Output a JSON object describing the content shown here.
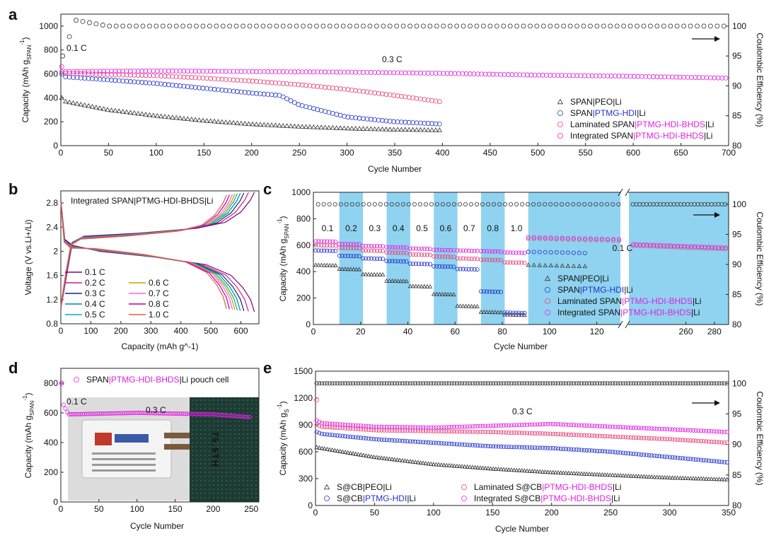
{
  "figure": {
    "panel_letters": [
      "a",
      "b",
      "c",
      "d",
      "e"
    ],
    "colors": {
      "gray": "#333333",
      "blue": "#2233cc",
      "pink": "#e8407a",
      "magenta": "#e020e0",
      "band": "#8fd3f0",
      "black": "#111111"
    }
  },
  "chart_data": [
    {
      "id": "a",
      "type": "scatter",
      "title": "",
      "xlabel": "Cycle Number",
      "ylabel_left": "Capacity (mAh g_SPAN^-1)",
      "ylabel_right": "Coulombic Efficiency (%)",
      "xlim": [
        0,
        700
      ],
      "ylim": [
        0,
        1100
      ],
      "ylim_right": [
        80,
        102
      ],
      "xticks": [
        0,
        50,
        100,
        150,
        200,
        250,
        300,
        350,
        400,
        450,
        500,
        550,
        600,
        650,
        700
      ],
      "yticks": [
        0,
        200,
        400,
        600,
        800,
        1000
      ],
      "yticks_right": [
        80,
        85,
        90,
        95,
        100
      ],
      "annotations": [
        "0.1 C",
        "0.3 C"
      ],
      "legend": [
        "SPAN|PEO|Li",
        "SPAN|PTMG-HDI|Li",
        "Laminated SPAN|PTMG-HDI-BHDS|Li",
        "Integrated SPAN|PTMG-HDI-BHDS|Li"
      ],
      "series": [
        {
          "name": "SPAN|PEO|Li",
          "marker": "triangle",
          "color": "#333333",
          "x": [
            1,
            5,
            50,
            100,
            150,
            200,
            250,
            300,
            350,
            400
          ],
          "y": [
            400,
            370,
            300,
            250,
            210,
            180,
            160,
            145,
            135,
            130
          ]
        },
        {
          "name": "SPAN|PTMG-HDI|Li",
          "marker": "circle",
          "color": "#2233cc",
          "x": [
            1,
            5,
            50,
            100,
            150,
            200,
            230,
            250,
            300,
            350,
            400
          ],
          "y": [
            600,
            575,
            550,
            520,
            480,
            440,
            420,
            340,
            240,
            200,
            180
          ]
        },
        {
          "name": "Laminated SPAN|PTMG-HDI-BHDS|Li",
          "marker": "circle",
          "color": "#e8407a",
          "x": [
            1,
            5,
            50,
            100,
            150,
            200,
            250,
            300,
            350,
            400
          ],
          "y": [
            620,
            605,
            595,
            585,
            565,
            540,
            510,
            470,
            420,
            365
          ]
        },
        {
          "name": "Integrated SPAN|PTMG-HDI-BHDS|Li",
          "marker": "circle",
          "color": "#e020e0",
          "x": [
            1,
            5,
            100,
            200,
            300,
            400,
            500,
            600,
            700
          ],
          "y": [
            660,
            620,
            625,
            620,
            615,
            605,
            590,
            580,
            565
          ]
        },
        {
          "name": "Coulombic Efficiency",
          "marker": "circle",
          "color": "#333333",
          "axis": "right",
          "x": [
            2,
            15,
            50,
            200,
            400,
            600,
            700
          ],
          "y": [
            95,
            101,
            100,
            100,
            100,
            100,
            100
          ]
        }
      ]
    },
    {
      "id": "b",
      "type": "line",
      "title": "Integrated SPAN|PTMG-HDI-BHDS|Li",
      "xlabel": "Capacity (mAh g^-1)",
      "ylabel": "Voltage (V vs.Li+/Li)",
      "xlim": [
        0,
        660
      ],
      "ylim": [
        0.8,
        3.0
      ],
      "xticks": [
        0,
        100,
        200,
        300,
        400,
        500,
        600
      ],
      "yticks": [
        0.8,
        1.2,
        1.6,
        2.0,
        2.4,
        2.8
      ],
      "series": [
        {
          "name": "0.1 C",
          "color": "#800080",
          "capacity": 645
        },
        {
          "name": "0.2 C",
          "color": "#cc2277",
          "capacity": 625
        },
        {
          "name": "0.3 C",
          "color": "#1a237e",
          "capacity": 610
        },
        {
          "name": "0.4 C",
          "color": "#008b8b",
          "capacity": 598
        },
        {
          "name": "0.5 C",
          "color": "#00b0b0",
          "capacity": 588
        },
        {
          "name": "0.6 C",
          "color": "#c8a000",
          "capacity": 580
        },
        {
          "name": "0.7 C",
          "color": "#ff66cc",
          "capacity": 572
        },
        {
          "name": "0.8 C",
          "color": "#b000b0",
          "capacity": 562
        },
        {
          "name": "1.0 C",
          "color": "#e06040",
          "capacity": 552
        }
      ]
    },
    {
      "id": "c",
      "type": "scatter",
      "xlabel": "Cycle Number",
      "ylabel_left": "Capacity (mAh g_SPAN^-1)",
      "ylabel_right": "Coulombic Efficiency (%)",
      "ylim": [
        0,
        1000
      ],
      "ylim_right": [
        80,
        102
      ],
      "xticks": [
        0,
        20,
        40,
        60,
        80,
        100,
        120,
        260,
        280
      ],
      "yticks": [
        0,
        200,
        400,
        600,
        800,
        1000
      ],
      "yticks_right": [
        80,
        85,
        90,
        95,
        100
      ],
      "rate_labels": [
        "0.1",
        "0.2",
        "0.3",
        "0.4",
        "0.5",
        "0.6",
        "0.7",
        "0.8",
        "1.0",
        "0.1 C"
      ],
      "legend": [
        "SPAN|PEO|Li",
        "SPAN|PTMG-HDI|Li",
        "Laminated SPAN|PTMG-HDI-BHDS|Li",
        "Integrated SPAN|PTMG-HDI-BHDS|Li"
      ],
      "series": [
        {
          "name": "SPAN|PEO|Li",
          "color": "#333333",
          "steps": [
            450,
            420,
            380,
            330,
            290,
            230,
            140,
            95,
            75,
            450
          ]
        },
        {
          "name": "SPAN|PTMG-HDI|Li",
          "color": "#2233cc",
          "steps": [
            560,
            520,
            500,
            480,
            460,
            440,
            420,
            250,
            90,
            550
          ]
        },
        {
          "name": "Laminated SPAN|PTMG-HDI-BHDS|Li",
          "color": "#e8407a",
          "steps": [
            600,
            580,
            560,
            545,
            530,
            515,
            500,
            490,
            470,
            650
          ]
        },
        {
          "name": "Integrated SPAN|PTMG-HDI-BHDS|Li",
          "color": "#e020e0",
          "steps": [
            630,
            610,
            595,
            585,
            575,
            565,
            560,
            555,
            545,
            660
          ]
        }
      ]
    },
    {
      "id": "d",
      "type": "scatter",
      "xlabel": "Cycle Number",
      "ylabel": "Capacity (mAh g_SPAN^-1)",
      "xlim": [
        0,
        260
      ],
      "ylim": [
        0,
        900
      ],
      "xticks": [
        0,
        50,
        100,
        150,
        200,
        250
      ],
      "yticks": [
        0,
        200,
        400,
        600,
        800
      ],
      "annotations": [
        "0.1 C",
        "0.3 C"
      ],
      "legend": [
        "SPAN|PTMG-HDI-BHDS|Li pouch cell"
      ],
      "series": [
        {
          "name": "SPAN|PTMG-HDI-BHDS|Li pouch cell",
          "color": "#e020e0",
          "x": [
            1,
            3,
            10,
            100,
            200,
            250
          ],
          "y": [
            800,
            660,
            590,
            600,
            590,
            570
          ]
        }
      ]
    },
    {
      "id": "e",
      "type": "scatter",
      "xlabel": "Cycle Number",
      "ylabel_left": "Capacity (mAh g_S^-1)",
      "ylabel_right": "Coulombic Efficiency (%)",
      "xlim": [
        0,
        350
      ],
      "ylim": [
        0,
        1500
      ],
      "ylim_right": [
        80,
        102
      ],
      "xticks": [
        0,
        50,
        100,
        150,
        200,
        250,
        300,
        350
      ],
      "yticks": [
        0,
        300,
        600,
        900,
        1200,
        1500
      ],
      "yticks_right": [
        80,
        85,
        90,
        95,
        100
      ],
      "annotations": [
        "0.3 C"
      ],
      "legend": [
        "S@CB|PEO|Li",
        "S@CB|PTMG-HDI|Li",
        "Laminated S@CB|PTMG-HDI-BHDS|Li",
        "Integrated S@CB|PTMG-HDI-BHDS|Li"
      ],
      "series": [
        {
          "name": "S@CB|PEO|Li",
          "color": "#333333",
          "x": [
            1,
            5,
            50,
            100,
            150,
            200,
            250,
            300,
            350
          ],
          "y": [
            650,
            640,
            540,
            460,
            410,
            370,
            340,
            310,
            290
          ]
        },
        {
          "name": "S@CB|PTMG-HDI|Li",
          "color": "#2233cc",
          "x": [
            1,
            5,
            50,
            100,
            150,
            200,
            250,
            300,
            350
          ],
          "y": [
            820,
            800,
            740,
            700,
            660,
            640,
            600,
            540,
            480
          ]
        },
        {
          "name": "Laminated S@CB|PTMG-HDI-BHDS|Li",
          "color": "#e8407a",
          "x": [
            1,
            5,
            50,
            100,
            150,
            200,
            250,
            300,
            350
          ],
          "y": [
            900,
            880,
            840,
            830,
            820,
            800,
            770,
            740,
            700
          ]
        },
        {
          "name": "Integrated S@CB|PTMG-HDI-BHDS|Li",
          "color": "#e020e0",
          "x": [
            1,
            5,
            50,
            100,
            150,
            200,
            250,
            300,
            350
          ],
          "y": [
            950,
            920,
            880,
            870,
            890,
            910,
            880,
            850,
            820
          ]
        },
        {
          "name": "Coulombic Efficiency",
          "color": "#333333",
          "axis": "right",
          "x": [
            1,
            350
          ],
          "y": [
            100,
            100
          ]
        }
      ]
    }
  ],
  "panel_d_photo": {
    "display_text": "75.5TH"
  }
}
